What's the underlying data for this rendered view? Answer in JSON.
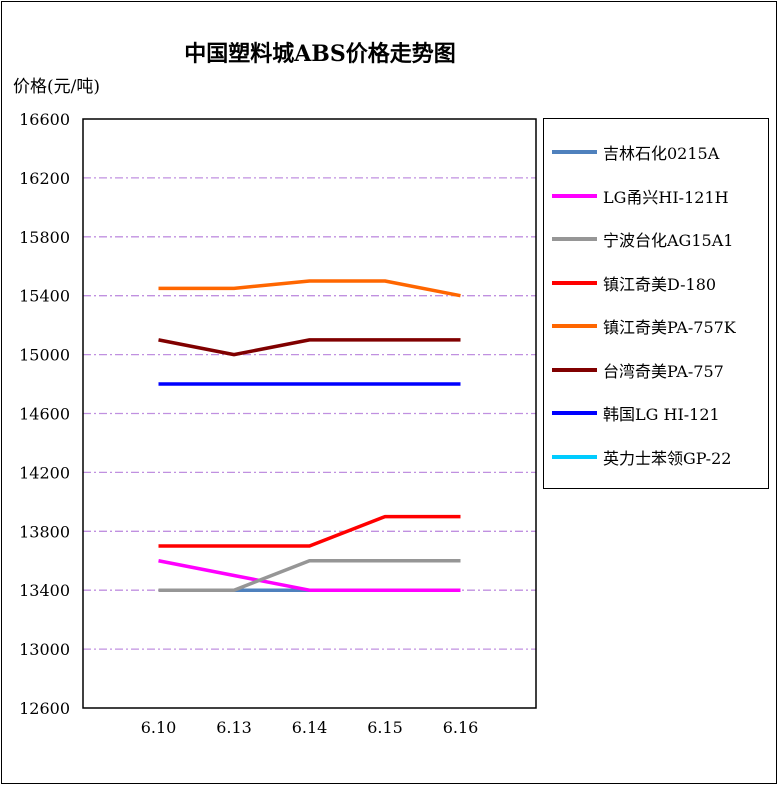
{
  "chart_data": {
    "type": "line",
    "title": "中国塑料城ABS价格走势图",
    "ylabel": "价格(元/吨)",
    "xlabel": "",
    "categories": [
      "6.10",
      "6.13",
      "6.14",
      "6.15",
      "6.16"
    ],
    "ylim": [
      12600,
      16600
    ],
    "yticks": [
      12600,
      13000,
      13400,
      13800,
      14200,
      14600,
      15000,
      15400,
      15800,
      16200,
      16600
    ],
    "grid": "horizontal dash-dot, purple",
    "legend_placement": "right",
    "series": [
      {
        "name": "吉林石化0215A",
        "color": "#4f81bd",
        "values": [
          13400,
          13400,
          13400,
          13400,
          13400
        ]
      },
      {
        "name": "LG甬兴HI-121H",
        "color": "#ff00ff",
        "values": [
          13600,
          13500,
          13400,
          13400,
          13400
        ]
      },
      {
        "name": "宁波台化AG15A1",
        "color": "#969696",
        "values": [
          13400,
          13400,
          13600,
          13600,
          13600
        ]
      },
      {
        "name": "镇江奇美D-180",
        "color": "#ff0000",
        "values": [
          13700,
          13700,
          13700,
          13900,
          13900
        ]
      },
      {
        "name": "镇江奇美PA-757K",
        "color": "#ff6600",
        "values": [
          15450,
          15450,
          15500,
          15500,
          15400
        ]
      },
      {
        "name": "台湾奇美PA-757",
        "color": "#800000",
        "values": [
          15100,
          15000,
          15100,
          15100,
          15100
        ]
      },
      {
        "name": "韩国LG HI-121",
        "color": "#0000ff",
        "values": [
          14800,
          14800,
          14800,
          14800,
          14800
        ]
      },
      {
        "name": "英力士苯领GP-22",
        "color": "#00ccff",
        "values": [
          null,
          null,
          null,
          null,
          null
        ]
      }
    ]
  }
}
